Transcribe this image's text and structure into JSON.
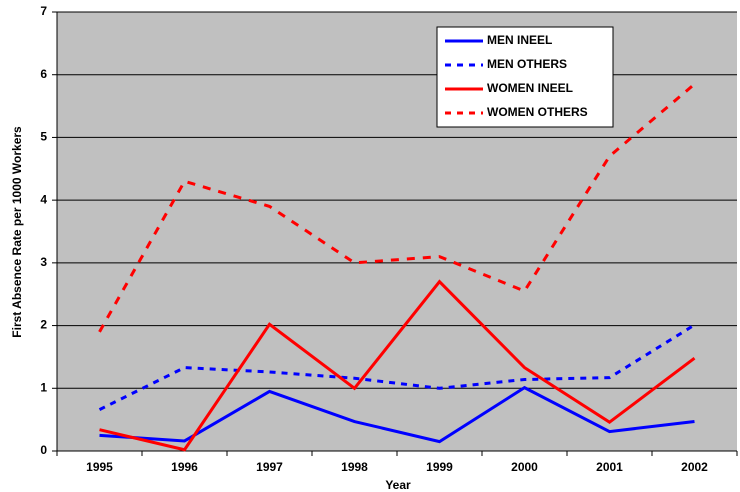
{
  "chart_data": {
    "type": "line",
    "x_label": "Year",
    "y_label": "First Absence Rate per 1000 Workers",
    "categories": [
      "1995",
      "1996",
      "1997",
      "1998",
      "1999",
      "2000",
      "2001",
      "2002"
    ],
    "series": [
      {
        "name": "MEN INEEL",
        "color": "#0000ff",
        "dashed": false,
        "values": [
          0.25,
          0.16,
          0.95,
          0.47,
          0.15,
          1.01,
          0.31,
          0.47
        ]
      },
      {
        "name": "MEN OTHERS",
        "color": "#0000ff",
        "dashed": true,
        "values": [
          0.66,
          1.33,
          1.26,
          1.16,
          1.0,
          1.14,
          1.17,
          2.01
        ]
      },
      {
        "name": "WOMEN INEEL",
        "color": "#ff0000",
        "dashed": false,
        "values": [
          0.34,
          0.02,
          2.02,
          1.0,
          2.7,
          1.33,
          0.46,
          1.48
        ]
      },
      {
        "name": "WOMEN OTHERS",
        "color": "#ff0000",
        "dashed": true,
        "values": [
          1.9,
          4.3,
          3.9,
          3.0,
          3.1,
          2.55,
          4.7,
          5.85
        ]
      }
    ],
    "ylim": [
      0,
      7
    ],
    "yticks": [
      0,
      1,
      2,
      3,
      4,
      5,
      6,
      7
    ],
    "grid": true,
    "legend": "upper right"
  }
}
